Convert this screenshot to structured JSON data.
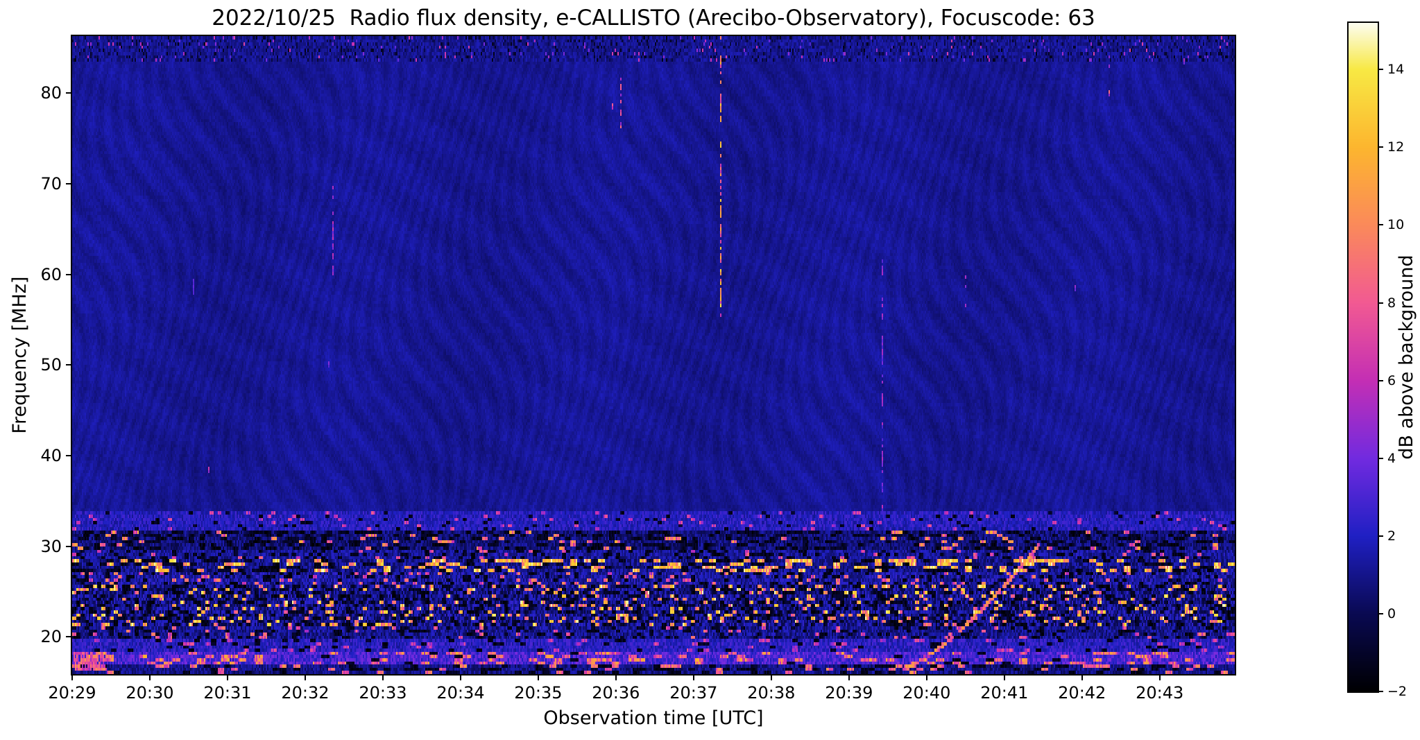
{
  "chart_data": {
    "type": "heatmap",
    "subtype": "radio-spectrogram",
    "title": "2022/10/25  Radio flux density, e-CALLISTO (Arecibo-Observatory), Focuscode: 63",
    "xlabel": "Observation time [UTC]",
    "ylabel": "Frequency [MHz]",
    "x_ticks": [
      "20:29",
      "20:30",
      "20:31",
      "20:32",
      "20:33",
      "20:34",
      "20:35",
      "20:36",
      "20:37",
      "20:38",
      "20:39",
      "20:40",
      "20:41",
      "20:42",
      "20:43"
    ],
    "y_ticks": [
      80,
      70,
      60,
      50,
      40,
      30,
      20
    ],
    "x_start_utc": "20:29",
    "x_end_utc": "20:44",
    "total_minutes": 14.9667,
    "freq_top_mhz": 86.3,
    "freq_bottom_mhz": 15.9,
    "grid": false,
    "colorbar": {
      "label": "dB above background",
      "tick_labels": [
        "−2",
        "0",
        "2",
        "4",
        "6",
        "8",
        "10",
        "12",
        "14"
      ],
      "tick_values": [
        -2,
        0,
        2,
        4,
        6,
        8,
        10,
        12,
        14
      ],
      "vmin": -2,
      "vmax": 15.2
    },
    "colormap_stops": [
      [
        -2,
        "#000002"
      ],
      [
        0,
        "#0a0a52"
      ],
      [
        2,
        "#2020c4"
      ],
      [
        4,
        "#722be0"
      ],
      [
        6,
        "#c42fb5"
      ],
      [
        8,
        "#f25a93"
      ],
      [
        10,
        "#fb8a5b"
      ],
      [
        12,
        "#fdb62f"
      ],
      [
        14,
        "#f8e944"
      ],
      [
        15.2,
        "#fdfdf0"
      ]
    ],
    "features": {
      "quiet_background": {
        "level_db": 1.15,
        "fringe_amp_db": 0.35
      },
      "top_noise_band": {
        "f_min": 83.4,
        "f_max": 86.3,
        "level_db": 0.8
      },
      "rfi_bands": [
        {
          "f_min": 31.6,
          "f_max": 33.7,
          "base": 2.0,
          "noise": 0.9,
          "dark": 0.06,
          "bright": 0.05,
          "bmin": 4,
          "bmax": 8,
          "seg": 3
        },
        {
          "f_min": 29.6,
          "f_max": 31.6,
          "base": 0.7,
          "noise": 1.0,
          "dark": 0.33,
          "bright": 0.07,
          "bmin": 6,
          "bmax": 12,
          "seg": 4
        },
        {
          "f_min": 28.4,
          "f_max": 29.6,
          "base": 1.3,
          "noise": 1.0,
          "dark": 0.22,
          "bright": 0.05,
          "bmin": 5,
          "bmax": 9,
          "seg": 3
        },
        {
          "f_min": 27.0,
          "f_max": 28.4,
          "base": 1.0,
          "noise": 1.1,
          "dark": 0.3,
          "bright": 0.26,
          "bmin": 8,
          "bmax": 15,
          "seg": 5
        },
        {
          "f_min": 25.6,
          "f_max": 27.0,
          "base": 1.4,
          "noise": 1.2,
          "dark": 0.2,
          "bright": 0.08,
          "bmin": 5,
          "bmax": 11,
          "seg": 3
        },
        {
          "f_min": 21.2,
          "f_max": 25.6,
          "base": 1.0,
          "noise": 1.5,
          "dark": 0.27,
          "bright": 0.12,
          "bmin": 7,
          "bmax": 15,
          "seg": 3
        },
        {
          "f_min": 19.6,
          "f_max": 21.2,
          "base": 1.1,
          "noise": 1.1,
          "dark": 0.2,
          "bright": 0.05,
          "bmin": 5,
          "bmax": 10,
          "seg": 3
        },
        {
          "f_min": 18.2,
          "f_max": 19.6,
          "base": 2.1,
          "noise": 1.0,
          "dark": 0.08,
          "bright": 0.06,
          "bmin": 4,
          "bmax": 8,
          "seg": 4
        },
        {
          "f_min": 16.9,
          "f_max": 18.2,
          "base": 3.0,
          "noise": 1.3,
          "dark": 0.05,
          "bright": 0.2,
          "bmin": 5,
          "bmax": 12,
          "seg": 6
        },
        {
          "f_min": 15.9,
          "f_max": 16.9,
          "base": 0.9,
          "noise": 0.9,
          "dark": 0.25,
          "bright": 0.1,
          "bmin": 6,
          "bmax": 11,
          "seg": 5
        }
      ],
      "vertical_streaks": [
        {
          "t_min": 1.55,
          "f_min": 57.5,
          "f_max": 59.5,
          "density": 0.7,
          "vmin": 3,
          "vmax": 5
        },
        {
          "t_min": 3.35,
          "f_min": 60.0,
          "f_max": 71.0,
          "density": 0.45,
          "vmin": 3.5,
          "vmax": 6.5
        },
        {
          "t_min": 7.05,
          "f_min": 75.5,
          "f_max": 82.0,
          "density": 0.5,
          "vmin": 4,
          "vmax": 9
        },
        {
          "t_min": 8.33,
          "f_min": 56.0,
          "f_max": 86.3,
          "density": 0.55,
          "vmin": 6,
          "vmax": 14
        },
        {
          "t_min": 10.42,
          "f_min": 33.5,
          "f_max": 62.0,
          "density": 0.5,
          "vmin": 3,
          "vmax": 6
        },
        {
          "t_min": 11.5,
          "f_min": 56.0,
          "f_max": 60.0,
          "density": 0.5,
          "vmin": 3.5,
          "vmax": 6
        },
        {
          "t_min": 13.35,
          "f_min": 79.0,
          "f_max": 86.0,
          "density": 0.5,
          "vmin": 4,
          "vmax": 9
        }
      ],
      "spot_events": [
        {
          "t_min": 1.75,
          "f_mhz": 38.9,
          "v": 6.5
        },
        {
          "t_min": 3.3,
          "f_mhz": 50.4,
          "v": 4.5
        },
        {
          "t_min": 6.95,
          "f_mhz": 79.0,
          "v": 8
        },
        {
          "t_min": 12.9,
          "f_mhz": 58.7,
          "v": 5
        },
        {
          "t_min": 14.3,
          "f_mhz": 84.0,
          "v": 5.5
        }
      ],
      "bright_patches": [
        {
          "t0": 0.02,
          "t1": 0.42,
          "f0": 16.9,
          "f1": 18.1,
          "v": 8
        }
      ],
      "drifting_burst": {
        "t_start_min": 10.7,
        "f_start_mhz": 16.8,
        "t_end_min": 12.45,
        "f_end_mhz": 30.6,
        "curve_exp": 1.35,
        "vmin": 6,
        "vmax": 12
      }
    }
  }
}
